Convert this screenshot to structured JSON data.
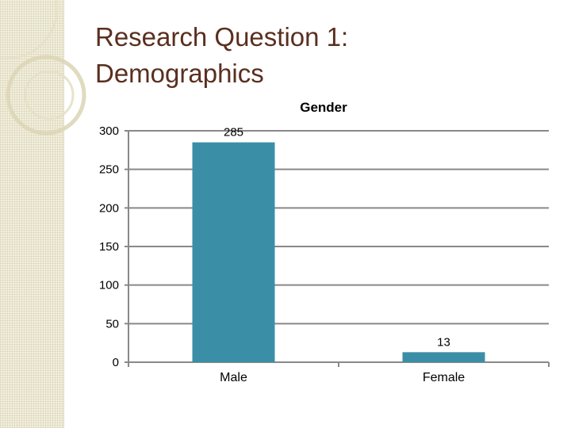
{
  "slide": {
    "title_line1": "Research Question 1:",
    "title_line2": "Demographics"
  },
  "colors": {
    "title": "#5a2f1f",
    "bar": "#3a8fa6",
    "gridline": "#898989",
    "background_band": "#f3f0df"
  },
  "chart_data": {
    "type": "bar",
    "title": "Gender",
    "categories": [
      "Male",
      "Female"
    ],
    "values": [
      285,
      13
    ],
    "data_labels": [
      "285",
      "13"
    ],
    "y_ticks": [
      0,
      50,
      100,
      150,
      200,
      250,
      300
    ],
    "ylim": [
      0,
      300
    ],
    "xlabel": "",
    "ylabel": "",
    "grid": true,
    "legend": "none"
  }
}
